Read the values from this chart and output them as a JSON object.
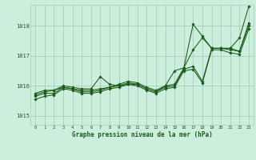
{
  "background_color": "#cceedd",
  "grid_color": "#aaccbb",
  "line_color": "#1a5c1a",
  "marker_color": "#1a5c1a",
  "xlabel": "Graphe pression niveau de la mer (hPa)",
  "xlim": [
    -0.5,
    23.5
  ],
  "ylim": [
    1014.7,
    1018.7
  ],
  "yticks": [
    1015,
    1016,
    1017,
    1018
  ],
  "xticks": [
    0,
    1,
    2,
    3,
    4,
    5,
    6,
    7,
    8,
    9,
    10,
    11,
    12,
    13,
    14,
    15,
    16,
    17,
    18,
    19,
    20,
    21,
    22,
    23
  ],
  "series": [
    [
      1015.75,
      1015.85,
      1015.85,
      1016.0,
      1015.95,
      1015.9,
      1015.9,
      1016.3,
      1016.05,
      1016.0,
      1016.05,
      1016.05,
      1015.9,
      1015.8,
      1016.0,
      1016.5,
      1016.6,
      1018.05,
      1017.65,
      1017.25,
      1017.25,
      1017.25,
      1017.6,
      1018.65
    ],
    [
      1015.7,
      1015.8,
      1015.85,
      1015.95,
      1015.9,
      1015.85,
      1015.85,
      1015.9,
      1015.95,
      1016.05,
      1016.15,
      1016.1,
      1015.95,
      1015.85,
      1016.0,
      1016.05,
      1016.6,
      1017.2,
      1017.6,
      1017.25,
      1017.25,
      1017.25,
      1017.15,
      1018.1
    ],
    [
      1015.65,
      1015.75,
      1015.75,
      1015.95,
      1015.9,
      1015.8,
      1015.8,
      1015.85,
      1015.95,
      1016.0,
      1016.1,
      1016.05,
      1015.9,
      1015.8,
      1015.95,
      1016.0,
      1016.55,
      1016.65,
      1016.15,
      1017.25,
      1017.25,
      1017.2,
      1017.15,
      1018.0
    ],
    [
      1015.55,
      1015.65,
      1015.7,
      1015.9,
      1015.85,
      1015.75,
      1015.75,
      1015.8,
      1015.9,
      1015.95,
      1016.05,
      1016.0,
      1015.85,
      1015.75,
      1015.9,
      1015.95,
      1016.5,
      1016.55,
      1016.1,
      1017.2,
      1017.2,
      1017.1,
      1017.05,
      1017.9
    ]
  ]
}
